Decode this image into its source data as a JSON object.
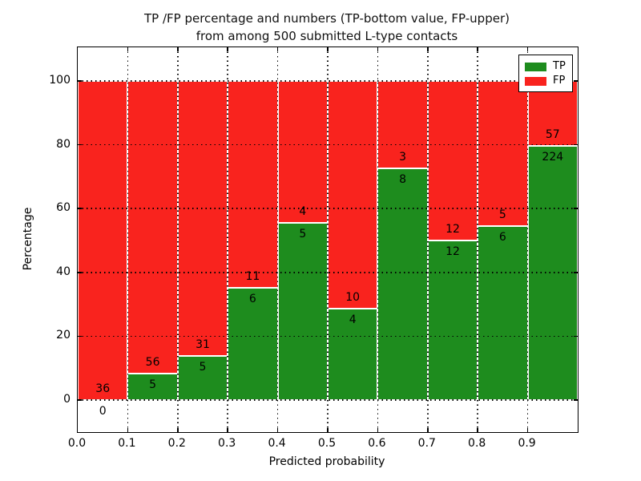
{
  "title": {
    "line1": "TP /FP percentage and numbers (TP-bottom value, FP-upper)",
    "line2": "from among 500 submitted L-type contacts"
  },
  "chart_data": {
    "type": "bar",
    "stacked": true,
    "normalized_to_percent": true,
    "title": "TP /FP percentage and numbers (TP-bottom value, FP-upper)\nfrom among 500 submitted L-type contacts",
    "xlabel": "Predicted probability",
    "ylabel": "Percentage",
    "xlim": [
      0.0,
      1.0
    ],
    "ylim": [
      -10,
      110.5
    ],
    "bin_edges": [
      0.0,
      0.1,
      0.2,
      0.3,
      0.4,
      0.5,
      0.6,
      0.7,
      0.8,
      0.9,
      1.0
    ],
    "xticks": [
      "0.0",
      "0.1",
      "0.2",
      "0.3",
      "0.4",
      "0.5",
      "0.6",
      "0.7",
      "0.8",
      "0.9"
    ],
    "yticks": [
      0,
      20,
      40,
      60,
      80,
      100
    ],
    "grid": "dotted",
    "series": [
      {
        "name": "TP",
        "color": "#1e8c1e",
        "counts": [
          0,
          5,
          5,
          6,
          5,
          4,
          8,
          12,
          6,
          224
        ]
      },
      {
        "name": "FP",
        "color": "#f9231e",
        "counts": [
          36,
          56,
          31,
          11,
          4,
          10,
          3,
          12,
          5,
          57
        ]
      }
    ],
    "tp_percent_heights": [
      0.0,
      8.2,
      13.9,
      35.3,
      55.6,
      28.6,
      72.7,
      50.0,
      54.5,
      79.7
    ],
    "bar_edge_color": "#ffffff",
    "legend": {
      "position": "upper right",
      "entries": [
        {
          "label": "TP",
          "color": "#1e8c1e"
        },
        {
          "label": "FP",
          "color": "#f9231e"
        }
      ]
    }
  }
}
